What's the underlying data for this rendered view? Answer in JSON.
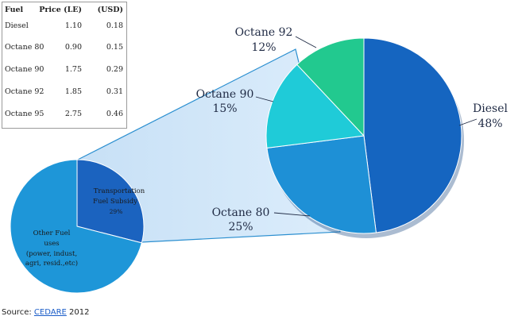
{
  "table": {
    "headers": [
      "Fuel",
      "Price (LE)",
      "(USD)"
    ],
    "rows": [
      [
        "Diesel",
        "1.10",
        "0.18"
      ],
      [
        "Octane 80",
        "0.90",
        "0.15"
      ],
      [
        "Octane 90",
        "1.75",
        "0.29"
      ],
      [
        "Octane 92",
        "1.85",
        "0.31"
      ],
      [
        "Octane 95",
        "2.75",
        "0.46"
      ]
    ]
  },
  "chart_data": [
    {
      "type": "pie",
      "categories": [
        "Transportation Fuel Subsidy",
        "Other Fuel uses (power, indust, agri, resid.,etc)"
      ],
      "values": [
        29,
        71
      ],
      "labels": [
        [
          "Transportation",
          "Fuel Subsidy",
          "29%"
        ],
        [
          "Other Fuel",
          "uses",
          "(power, indust,",
          "agri, resid.,etc)"
        ]
      ],
      "colors": [
        "#1b63bf",
        "#1e96d8"
      ]
    },
    {
      "type": "pie",
      "categories": [
        "Diesel",
        "Octane 80",
        "Octane 90",
        "Octane 92"
      ],
      "values": [
        48,
        25,
        15,
        12
      ],
      "value_labels": [
        "48%",
        "25%",
        "15%",
        "12%"
      ],
      "colors": [
        "#1565c0",
        "#1e90d6",
        "#1fcbd8",
        "#22c98f"
      ]
    }
  ],
  "source": {
    "prefix": "Source:",
    "link": "CEDARE",
    "year": "2012"
  }
}
